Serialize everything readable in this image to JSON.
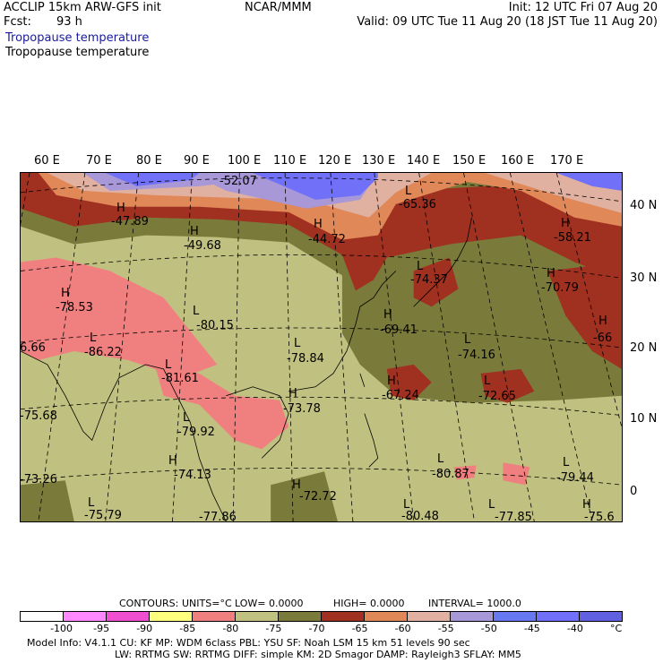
{
  "header": {
    "model_line": "ACCLIP 15km ARW-GFS init",
    "fcst_label": "Fcst:",
    "fcst_value": "93 h",
    "center": "NCAR/MMM",
    "init": "Init: 12 UTC Fri 07 Aug 20",
    "valid": "Valid: 09 UTC Tue 11 Aug 20 (18 JST Tue 11 Aug 20)",
    "field1": "Tropopause temperature",
    "field2": "Tropopause temperature"
  },
  "longitudes": [
    "60 E",
    "70 E",
    "80 E",
    "90 E",
    "100 E",
    "110 E",
    "120 E",
    "130 E",
    "140 E",
    "150 E",
    "160 E",
    "170 E"
  ],
  "latitudes": [
    "40 N",
    "30 N",
    "20 N",
    "10 N",
    "0"
  ],
  "centers": [
    {
      "type": "H",
      "value": "-47.89"
    },
    {
      "type": "H",
      "value": "-49.68"
    },
    {
      "type": "",
      "value": "-52.07"
    },
    {
      "type": "H",
      "value": "-44.72"
    },
    {
      "type": "L",
      "value": "-65.36"
    },
    {
      "type": "H",
      "value": "-58.21"
    },
    {
      "type": "L",
      "value": "-74.37"
    },
    {
      "type": "H",
      "value": "-70.79"
    },
    {
      "type": "H",
      "value": "-66"
    },
    {
      "type": "H",
      "value": "-78.53"
    },
    {
      "type": "L",
      "value": "-80.15"
    },
    {
      "type": "L",
      "value": "-86.22"
    },
    {
      "type": "",
      "value": "6.66"
    },
    {
      "type": "L",
      "value": "-81.61"
    },
    {
      "type": "L",
      "value": "-78.84"
    },
    {
      "type": "H",
      "value": "-69.41"
    },
    {
      "type": "L",
      "value": "-74.16"
    },
    {
      "type": "H",
      "value": "-67.24"
    },
    {
      "type": "L",
      "value": "-72.65"
    },
    {
      "type": "H",
      "value": "-73.78"
    },
    {
      "type": "",
      "value": "-75.68"
    },
    {
      "type": "L",
      "value": "-79.92"
    },
    {
      "type": "H",
      "value": "-74.13"
    },
    {
      "type": "",
      "value": "-73.26"
    },
    {
      "type": "L",
      "value": "-80.87"
    },
    {
      "type": "L",
      "value": "-79.44"
    },
    {
      "type": "H",
      "value": "-72.72"
    },
    {
      "type": "L",
      "value": "-75.79"
    },
    {
      "type": "L",
      "value": "-77.85"
    },
    {
      "type": "L",
      "value": "-80.48"
    },
    {
      "type": "H",
      "value": "-75.6"
    },
    {
      "type": "",
      "value": "-77.86"
    }
  ],
  "contours": {
    "label": "CONTOURS:",
    "units": "UNITS=°C",
    "low": "LOW= 0.0000",
    "high": "HIGH= 0.0000",
    "interval": "INTERVAL= 1000.0"
  },
  "scale": {
    "colors": [
      "#ffffff",
      "#ff88ff",
      "#f050d0",
      "#ffff80",
      "#f08080",
      "#c0c080",
      "#7a7a3a",
      "#a03020",
      "#e08858",
      "#e0b0a0",
      "#a898d8",
      "#6878f0",
      "#7070f8",
      "#6060e0"
    ],
    "ticks": [
      "-100",
      "-95",
      "-90",
      "-85",
      "-80",
      "-75",
      "-70",
      "-65",
      "-60",
      "-55",
      "-50",
      "-45",
      "-40",
      "°C"
    ]
  },
  "model_info": {
    "line1": "Model Info: V4.1.1    CU: KF    MP: WDM 6class   PBL: YSU    SF: Noah LSM    15 km    51 levels    90 sec",
    "line2": "LW: RRTMG    SW: RRTMG   DIFF: simple KM: 2D Smagor DAMP: Rayleigh3  SFLAY: MM5"
  }
}
